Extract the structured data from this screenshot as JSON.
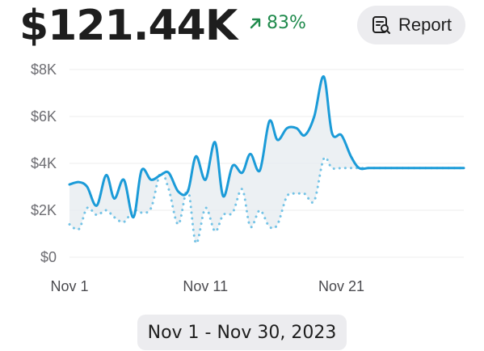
{
  "summary": {
    "total": "$121.44K",
    "change": "83%",
    "change_direction": "up",
    "change_color": "#1f8a4c"
  },
  "report_button": {
    "label": "Report",
    "icon": "report-search-icon"
  },
  "date_range": "Nov 1 - Nov 30, 2023",
  "chart_data": {
    "type": "line",
    "title": "",
    "xlabel": "",
    "ylabel": "",
    "ylim": [
      0,
      8000
    ],
    "y_ticks": [
      0,
      2000,
      4000,
      6000,
      8000
    ],
    "y_tick_labels": [
      "$0",
      "$2K",
      "$4K",
      "$6K",
      "$8K"
    ],
    "x_tick_labels": [
      "Nov 1",
      "Nov 11",
      "Nov 21"
    ],
    "x_tick_positions": [
      1,
      11,
      21
    ],
    "xlim": [
      1,
      30
    ],
    "grid": true,
    "legend": "none",
    "series": [
      {
        "style": "solid",
        "color": "#1b9bd8",
        "fill_color": "#e9edf1",
        "x": [
          1,
          1.7,
          2.3,
          3,
          3.7,
          4.3,
          5,
          5.7,
          6.3,
          7,
          7.7,
          8.3,
          9,
          9.7,
          10.3,
          11,
          11.7,
          12.3,
          13,
          13.7,
          14.3,
          15,
          15.7,
          16.3,
          17,
          17.7,
          18.3,
          19,
          19.7,
          20.3,
          21,
          21.7,
          22.3,
          23,
          23.7,
          24.3,
          25,
          25.7,
          26.3,
          27,
          27.7,
          28.3,
          29,
          29.6,
          30
        ],
        "y": [
          3100,
          3200,
          3000,
          2200,
          3500,
          2500,
          3300,
          1700,
          3700,
          3300,
          3500,
          3600,
          2800,
          2800,
          4300,
          3300,
          4900,
          2600,
          3900,
          3600,
          4400,
          3700,
          5800,
          5000,
          5500,
          5500,
          5200,
          6000,
          7700,
          5300,
          5200,
          4300,
          3800,
          3800,
          3800,
          3800,
          3800,
          3800,
          3800,
          3800,
          3800,
          3800,
          3800,
          3800,
          3800
        ]
      },
      {
        "style": "dotted",
        "color": "#74c3e6",
        "x": [
          1,
          1.7,
          2.3,
          3,
          3.7,
          4.3,
          5,
          5.7,
          6.3,
          7,
          7.7,
          8.3,
          9,
          9.7,
          10.3,
          11,
          11.7,
          12.3,
          13,
          13.7,
          14.3,
          15,
          15.7,
          16.3,
          17,
          17.7,
          18.3,
          19,
          19.7,
          20.3,
          21,
          21.7,
          22.3,
          23,
          23.7,
          24.3,
          25,
          25.7,
          26.3,
          27,
          27.7,
          28.3,
          29,
          29.6,
          30
        ],
        "y": [
          1400,
          1200,
          2100,
          1800,
          2000,
          1700,
          1500,
          2000,
          1900,
          2100,
          3600,
          2900,
          1400,
          2900,
          600,
          2100,
          1100,
          1800,
          1900,
          2900,
          1300,
          2000,
          1300,
          1400,
          2600,
          2700,
          2700,
          2400,
          4200,
          3800,
          3800,
          3800,
          3800,
          3800,
          3800,
          3800,
          3800,
          3800,
          3800,
          3800,
          3800,
          3800,
          3800,
          3800,
          3800
        ]
      }
    ]
  }
}
